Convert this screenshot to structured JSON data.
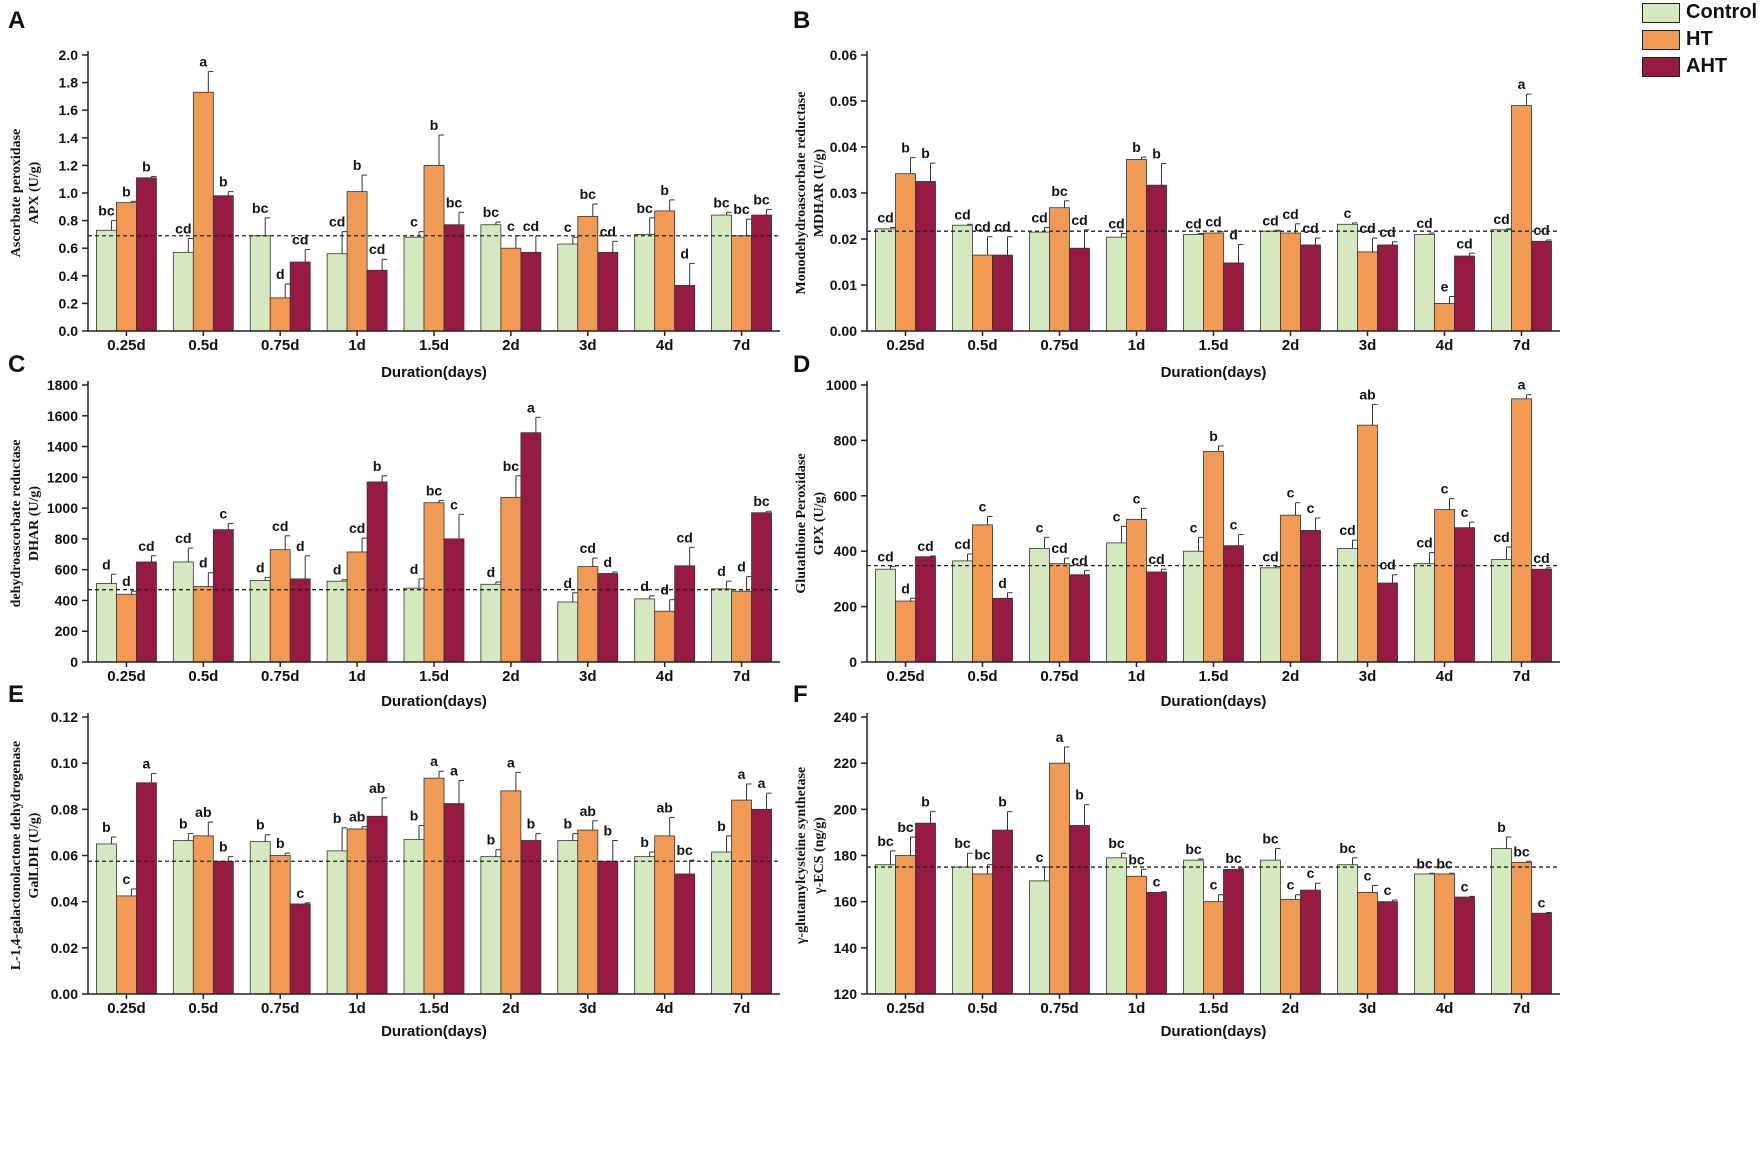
{
  "legend": {
    "items": [
      {
        "name": "Control",
        "color": "#d6e8c0"
      },
      {
        "name": "HT",
        "color": "#f09a55"
      },
      {
        "name": "AHT",
        "color": "#971b41"
      }
    ]
  },
  "reference_line_style": "dashed",
  "chart_data": [
    {
      "panel": "A",
      "type": "bar",
      "categories": [
        "0.25d",
        "0.5d",
        "0.75d",
        "1d",
        "1.5d",
        "2d",
        "3d",
        "4d",
        "7d"
      ],
      "xlabel": "Duration(days)",
      "ylabel_line1": "Ascorbate peroxidase",
      "ylabel_line2": "APX (U/g)",
      "ylim": [
        0,
        2.0
      ],
      "ytick_labels": [
        "0.0",
        "0.2",
        "0.4",
        "0.6",
        "0.8",
        "1.0",
        "1.2",
        "1.4",
        "1.6",
        "1.8",
        "2.0"
      ],
      "ref": 0.69,
      "series": [
        {
          "name": "Control",
          "values": [
            0.73,
            0.57,
            0.69,
            0.56,
            0.68,
            0.77,
            0.63,
            0.7,
            0.84
          ],
          "errors": [
            0.07,
            0.1,
            0.13,
            0.16,
            0.04,
            0.02,
            0.05,
            0.12,
            0.02
          ],
          "letters": [
            "bc",
            "cd",
            "bc",
            "cd",
            "c",
            "bc",
            "c",
            "bc",
            "bc"
          ]
        },
        {
          "name": "HT",
          "values": [
            0.93,
            1.73,
            0.24,
            1.01,
            1.2,
            0.6,
            0.83,
            0.87,
            0.69
          ],
          "errors": [
            0.01,
            0.15,
            0.1,
            0.12,
            0.22,
            0.09,
            0.09,
            0.08,
            0.12
          ],
          "letters": [
            "b",
            "a",
            "d",
            "b",
            "b",
            "c",
            "bc",
            "b",
            "bc"
          ]
        },
        {
          "name": "AHT",
          "values": [
            1.11,
            0.98,
            0.5,
            0.44,
            0.77,
            0.57,
            0.57,
            0.33,
            0.84
          ],
          "errors": [
            0.01,
            0.03,
            0.09,
            0.08,
            0.09,
            0.12,
            0.08,
            0.16,
            0.04
          ],
          "letters": [
            "b",
            "b",
            "cd",
            "cd",
            "bc",
            "cd",
            "cd",
            "d",
            "bc"
          ]
        }
      ]
    },
    {
      "panel": "B",
      "type": "bar",
      "categories": [
        "0.25d",
        "0.5d",
        "0.75d",
        "1d",
        "1.5d",
        "2d",
        "3d",
        "4d",
        "7d"
      ],
      "xlabel": "Duration(days)",
      "ylabel_line1": "Monodehydroascorbate reductase",
      "ylabel_line2": "MDHAR (U/g)",
      "ylim": [
        0,
        0.06
      ],
      "ytick_labels": [
        "0.00",
        "0.01",
        "0.02",
        "0.03",
        "0.04",
        "0.05",
        "0.06"
      ],
      "ref": 0.0217,
      "series": [
        {
          "name": "Control",
          "values": [
            0.0222,
            0.023,
            0.0215,
            0.0204,
            0.021,
            0.0217,
            0.0232,
            0.021,
            0.022
          ],
          "errors": [
            0.0003,
            0.0002,
            0.001,
            0.0008,
            0.0002,
            0.0002,
            0.0003,
            0.0003,
            0.0002
          ],
          "letters": [
            "cd",
            "cd",
            "cd",
            "cd",
            "cd",
            "cd",
            "c",
            "cd",
            "cd"
          ]
        },
        {
          "name": "HT",
          "values": [
            0.0342,
            0.0165,
            0.0268,
            0.0373,
            0.0213,
            0.0213,
            0.0172,
            0.006,
            0.049
          ],
          "errors": [
            0.0035,
            0.004,
            0.0015,
            0.0005,
            0.0003,
            0.002,
            0.003,
            0.0015,
            0.0025
          ],
          "letters": [
            "b",
            "cd",
            "bc",
            "b",
            "cd",
            "cd",
            "cd",
            "e",
            "a"
          ]
        },
        {
          "name": "AHT",
          "values": [
            0.0325,
            0.0165,
            0.018,
            0.0317,
            0.0148,
            0.0187,
            0.0187,
            0.0163,
            0.0195
          ],
          "errors": [
            0.004,
            0.004,
            0.004,
            0.0047,
            0.004,
            0.0015,
            0.0007,
            0.0006,
            0.0003
          ],
          "letters": [
            "b",
            "cd",
            "cd",
            "b",
            "d",
            "cd",
            "cd",
            "cd",
            "cd"
          ]
        }
      ]
    },
    {
      "panel": "C",
      "type": "bar",
      "categories": [
        "0.25d",
        "0.5d",
        "0.75d",
        "1d",
        "1.5d",
        "2d",
        "3d",
        "4d",
        "7d"
      ],
      "xlabel": "Duration(days)",
      "ylabel_line1": "dehydroascorbate reductase",
      "ylabel_line2": "DHAR (U/g)",
      "ylim": [
        0,
        1800
      ],
      "ytick_labels": [
        "0",
        "200",
        "400",
        "600",
        "800",
        "1000",
        "1200",
        "1400",
        "1600",
        "1800"
      ],
      "ref": 470,
      "series": [
        {
          "name": "Control",
          "values": [
            510,
            650,
            530,
            525,
            480,
            505,
            390,
            410,
            475
          ],
          "errors": [
            60,
            90,
            20,
            10,
            60,
            15,
            60,
            20,
            50
          ],
          "letters": [
            "d",
            "cd",
            "d",
            "d",
            "d",
            "d",
            "d",
            "d",
            "d"
          ]
        },
        {
          "name": "HT",
          "values": [
            440,
            490,
            730,
            715,
            1035,
            1070,
            620,
            330,
            460
          ],
          "errors": [
            20,
            90,
            90,
            90,
            15,
            140,
            55,
            75,
            95
          ],
          "letters": [
            "d",
            "d",
            "cd",
            "cd",
            "bc",
            "bc",
            "cd",
            "d",
            "d"
          ]
        },
        {
          "name": "AHT",
          "values": [
            650,
            860,
            540,
            1170,
            800,
            1490,
            575,
            625,
            970
          ],
          "errors": [
            40,
            40,
            150,
            40,
            160,
            100,
            10,
            120,
            10
          ],
          "letters": [
            "cd",
            "c",
            "d",
            "b",
            "c",
            "a",
            "d",
            "cd",
            "bc"
          ]
        }
      ]
    },
    {
      "panel": "D",
      "type": "bar",
      "categories": [
        "0.25d",
        "0.5d",
        "0.75d",
        "1d",
        "1.5d",
        "2d",
        "3d",
        "4d",
        "7d"
      ],
      "xlabel": "Duration(days)",
      "ylabel_line1": "Glutathione Peroxidase",
      "ylabel_line2": "GPX (U/g)",
      "ylim": [
        0,
        1000
      ],
      "ytick_labels": [
        "0",
        "200",
        "400",
        "600",
        "800",
        "1000"
      ],
      "ref": 348,
      "series": [
        {
          "name": "Control",
          "values": [
            335,
            365,
            410,
            430,
            400,
            340,
            410,
            355,
            370
          ],
          "errors": [
            10,
            25,
            40,
            60,
            50,
            5,
            30,
            40,
            45
          ],
          "letters": [
            "cd",
            "cd",
            "c",
            "c",
            "c",
            "cd",
            "cd",
            "cd",
            "cd"
          ]
        },
        {
          "name": "HT",
          "values": [
            220,
            495,
            355,
            515,
            760,
            530,
            855,
            550,
            950
          ],
          "errors": [
            10,
            30,
            20,
            40,
            20,
            45,
            75,
            40,
            15
          ],
          "letters": [
            "d",
            "c",
            "cd",
            "c",
            "b",
            "c",
            "ab",
            "c",
            "a"
          ]
        },
        {
          "name": "AHT",
          "values": [
            380,
            230,
            315,
            325,
            420,
            475,
            285,
            485,
            335
          ],
          "errors": [
            3,
            20,
            15,
            10,
            40,
            45,
            30,
            20,
            5
          ],
          "letters": [
            "cd",
            "d",
            "cd",
            "cd",
            "c",
            "c",
            "cd",
            "c",
            "cd"
          ]
        }
      ]
    },
    {
      "panel": "E",
      "type": "bar",
      "categories": [
        "0.25d",
        "0.5d",
        "0.75d",
        "1d",
        "1.5d",
        "2d",
        "3d",
        "4d",
        "7d"
      ],
      "xlabel": "Duration(days)",
      "ylabel_line1": "L-1,4-galactonolactone dehydrogenase",
      "ylabel_line2": "GalLDH (U/g)",
      "ylim": [
        0,
        0.12
      ],
      "ytick_labels": [
        "0.00",
        "0.02",
        "0.04",
        "0.06",
        "0.08",
        "0.10",
        "0.12"
      ],
      "ref": 0.0575,
      "series": [
        {
          "name": "Control",
          "values": [
            0.065,
            0.0665,
            0.066,
            0.062,
            0.067,
            0.0595,
            0.0665,
            0.0595,
            0.0615
          ],
          "errors": [
            0.003,
            0.003,
            0.003,
            0.01,
            0.006,
            0.003,
            0.003,
            0.002,
            0.007
          ],
          "letters": [
            "b",
            "b",
            "b",
            "b",
            "b",
            "b",
            "b",
            "b",
            "b"
          ]
        },
        {
          "name": "HT",
          "values": [
            0.0425,
            0.0685,
            0.06,
            0.0715,
            0.0935,
            0.088,
            0.071,
            0.0685,
            0.084
          ],
          "errors": [
            0.003,
            0.006,
            0.001,
            0.001,
            0.003,
            0.008,
            0.004,
            0.008,
            0.007
          ],
          "letters": [
            "c",
            "ab",
            "b",
            "ab",
            "a",
            "a",
            "ab",
            "ab",
            "a"
          ]
        },
        {
          "name": "AHT",
          "values": [
            0.0915,
            0.0575,
            0.039,
            0.077,
            0.0825,
            0.0665,
            0.0575,
            0.052,
            0.08
          ],
          "errors": [
            0.004,
            0.002,
            0.0005,
            0.008,
            0.01,
            0.003,
            0.009,
            0.006,
            0.007
          ],
          "letters": [
            "a",
            "b",
            "c",
            "ab",
            "a",
            "b",
            "b",
            "bc",
            "a"
          ]
        }
      ]
    },
    {
      "panel": "F",
      "type": "bar",
      "categories": [
        "0.25d",
        "0.5d",
        "0.75d",
        "1d",
        "1.5d",
        "2d",
        "3d",
        "4d",
        "7d"
      ],
      "xlabel": "Duration(days)",
      "ylabel_line1": "γ-glutamylcysteine synthetase",
      "ylabel_line2": "γ-ECS (ng/g)",
      "ylim": [
        120,
        240
      ],
      "ytick_labels": [
        "120",
        "140",
        "160",
        "180",
        "200",
        "220",
        "240"
      ],
      "ref": 175,
      "series": [
        {
          "name": "Control",
          "values": [
            176,
            175,
            169,
            179,
            178,
            178,
            176,
            172,
            183
          ],
          "errors": [
            6,
            6,
            6,
            2,
            0.5,
            5,
            3,
            0.3,
            5
          ],
          "letters": [
            "bc",
            "bc",
            "c",
            "bc",
            "bc",
            "bc",
            "bc",
            "bc",
            "b"
          ]
        },
        {
          "name": "HT",
          "values": [
            180,
            172,
            220,
            171,
            160,
            161,
            164,
            172,
            177
          ],
          "errors": [
            8,
            4,
            7,
            3,
            3,
            2,
            3,
            0.3,
            0.5
          ],
          "letters": [
            "bc",
            "bc",
            "a",
            "bc",
            "c",
            "c",
            "c",
            "bc",
            "bc"
          ]
        },
        {
          "name": "AHT",
          "values": [
            194,
            191,
            193,
            164,
            174,
            165,
            160,
            162,
            155
          ],
          "errors": [
            5,
            8,
            9,
            0.3,
            0.5,
            3,
            0.7,
            0.3,
            0.3
          ],
          "letters": [
            "b",
            "b",
            "b",
            "c",
            "bc",
            "c",
            "c",
            "c",
            "c"
          ]
        }
      ]
    }
  ]
}
